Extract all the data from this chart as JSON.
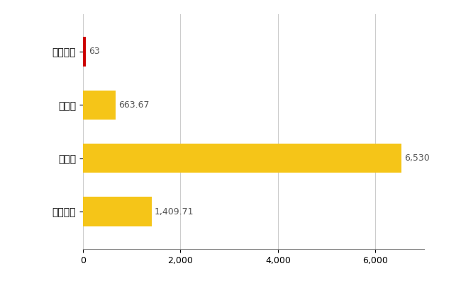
{
  "categories": [
    "古座川町",
    "県平均",
    "県最大",
    "全国平均"
  ],
  "values": [
    63,
    663.67,
    6530,
    1409.71
  ],
  "bar_colors": [
    "#cc0000",
    "#f5c518",
    "#f5c518",
    "#f5c518"
  ],
  "value_labels": [
    "63",
    "663.67",
    "6,530",
    "1,409.71"
  ],
  "xlim": [
    0,
    7000
  ],
  "xticks": [
    0,
    2000,
    4000,
    6000
  ],
  "bar_height": 0.55,
  "background_color": "#ffffff",
  "grid_color": "#cccccc",
  "label_fontsize": 10,
  "tick_fontsize": 9,
  "value_label_fontsize": 9
}
